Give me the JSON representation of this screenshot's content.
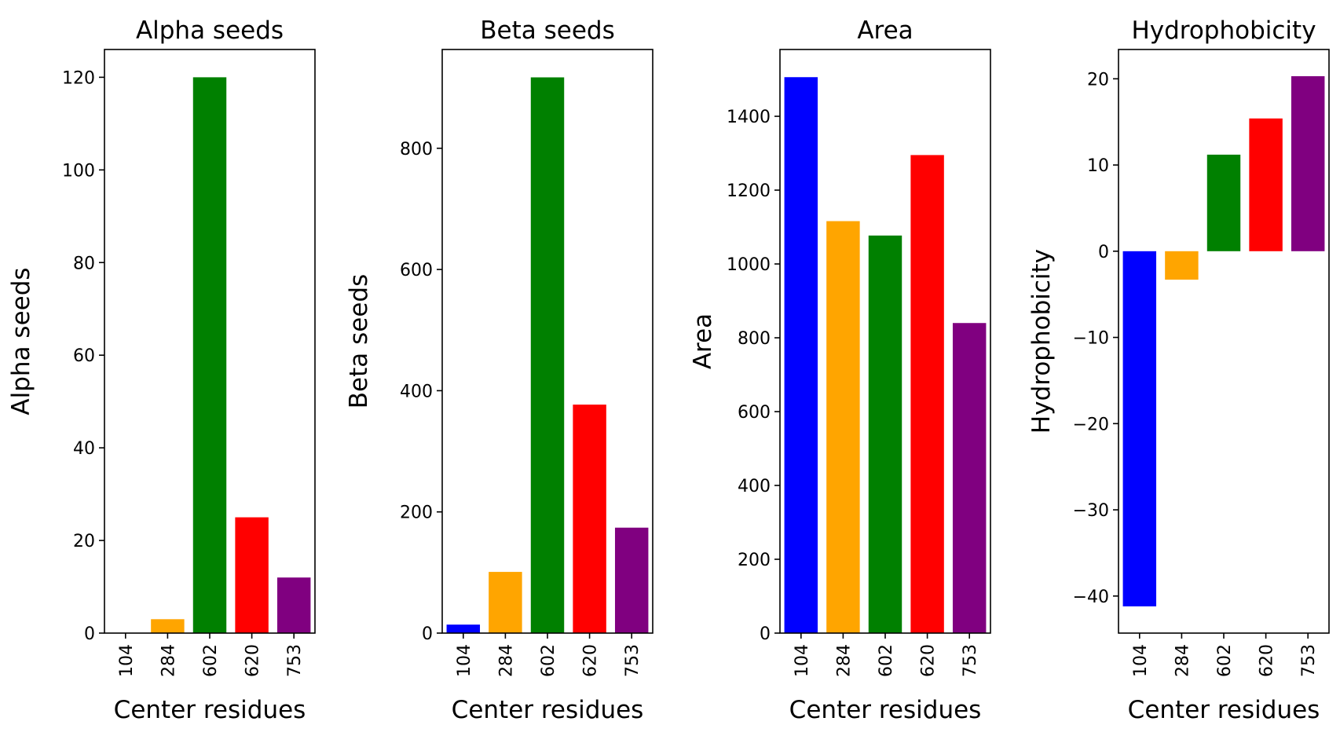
{
  "chart_data": [
    {
      "type": "bar",
      "title": "Alpha seeds",
      "xlabel": "Center residues",
      "ylabel": "Alpha seeds",
      "categories": [
        "104",
        "284",
        "602",
        "620",
        "753"
      ],
      "values": [
        0,
        3,
        120,
        25,
        12
      ],
      "colors": [
        "#0000ff",
        "#ffa500",
        "#008000",
        "#ff0000",
        "#800080"
      ],
      "yticks": [
        0,
        20,
        40,
        60,
        80,
        100,
        120
      ],
      "ylim": [
        0,
        126
      ]
    },
    {
      "type": "bar",
      "title": "Beta seeds",
      "xlabel": "Center residues",
      "ylabel": "Beta seeds",
      "categories": [
        "104",
        "284",
        "602",
        "620",
        "753"
      ],
      "values": [
        14,
        101,
        917,
        377,
        174
      ],
      "colors": [
        "#0000ff",
        "#ffa500",
        "#008000",
        "#ff0000",
        "#800080"
      ],
      "yticks": [
        0,
        200,
        400,
        600,
        800
      ],
      "ylim": [
        0,
        963
      ]
    },
    {
      "type": "bar",
      "title": "Area",
      "xlabel": "Center residues",
      "ylabel": "Area",
      "categories": [
        "104",
        "284",
        "602",
        "620",
        "753"
      ],
      "values": [
        1506,
        1116,
        1077,
        1295,
        840
      ],
      "colors": [
        "#0000ff",
        "#ffa500",
        "#008000",
        "#ff0000",
        "#800080"
      ],
      "yticks": [
        0,
        200,
        400,
        600,
        800,
        1000,
        1200,
        1400
      ],
      "ylim": [
        0,
        1581
      ]
    },
    {
      "type": "bar",
      "title": "Hydrophobicity",
      "xlabel": "Center residues",
      "ylabel": "Hydrophobicity",
      "categories": [
        "104",
        "284",
        "602",
        "620",
        "753"
      ],
      "values": [
        -41.2,
        -3.3,
        11.2,
        15.4,
        20.3
      ],
      "colors": [
        "#0000ff",
        "#ffa500",
        "#008000",
        "#ff0000",
        "#800080"
      ],
      "yticks": [
        -40,
        -30,
        -20,
        -10,
        0,
        10,
        20
      ],
      "ylim": [
        -44.3,
        23.4
      ]
    }
  ]
}
